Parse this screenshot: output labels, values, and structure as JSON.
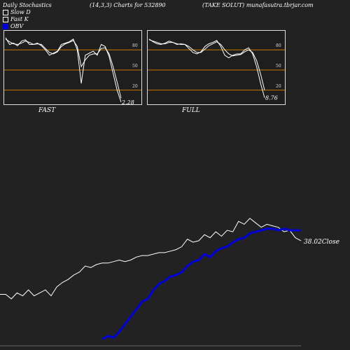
{
  "header": {
    "title": "Daily Stochastics",
    "params": "(14,3,3) Charts for 532890",
    "source": "(TAKE SOLUT) munafasutra.tbrjar.com"
  },
  "legend": [
    {
      "label": "Slow  D",
      "color": "#ffffff"
    },
    {
      "label": "Fast  K",
      "color": "#ffffff"
    },
    {
      "label": "OBV",
      "color": "#0000dd"
    }
  ],
  "chart_data": [
    {
      "type": "line",
      "title": "FAST",
      "ylim": [
        0,
        100
      ],
      "yticks": [
        20,
        50,
        80
      ],
      "reference_lines": [
        20,
        50,
        80
      ],
      "last_value_label": "2.28",
      "series": [
        {
          "values": [
            98,
            88,
            90,
            86,
            93,
            95,
            88,
            88,
            90,
            86,
            80,
            72,
            75,
            78,
            88,
            90,
            92,
            96,
            80,
            30,
            72,
            75,
            78,
            72,
            88,
            85,
            70,
            45,
            20,
            2.28
          ]
        },
        {
          "values": [
            96,
            92,
            89,
            88,
            90,
            93,
            91,
            88,
            89,
            88,
            82,
            76,
            74,
            77,
            85,
            89,
            91,
            94,
            85,
            55,
            65,
            72,
            74,
            74,
            82,
            83,
            74,
            55,
            32,
            8
          ]
        }
      ]
    },
    {
      "type": "line",
      "title": "FULL",
      "ylim": [
        0,
        100
      ],
      "yticks": [
        20,
        50,
        80
      ],
      "reference_lines": [
        20,
        50,
        80
      ],
      "last_value_label": "8.76",
      "series": [
        {
          "values": [
            96,
            92,
            89,
            88,
            90,
            93,
            91,
            88,
            89,
            88,
            82,
            76,
            74,
            77,
            85,
            89,
            91,
            94,
            85,
            72,
            68,
            72,
            74,
            74,
            80,
            83,
            74,
            55,
            30,
            8.76
          ]
        },
        {
          "values": [
            95,
            93,
            91,
            89,
            89,
            91,
            91,
            89,
            88,
            88,
            85,
            80,
            76,
            76,
            81,
            86,
            89,
            92,
            88,
            80,
            74,
            71,
            72,
            73,
            77,
            80,
            76,
            64,
            44,
            20
          ]
        }
      ]
    },
    {
      "type": "line",
      "title": "",
      "last_value_label": "38.02Close",
      "series": [
        {
          "values": [
            15,
            15,
            12,
            16,
            14,
            18,
            14,
            16,
            18,
            14,
            20,
            23,
            25,
            28,
            30,
            34,
            33,
            35,
            36,
            36,
            37,
            38,
            37,
            38,
            40,
            41,
            41,
            42,
            43,
            43,
            44,
            45,
            47,
            52,
            50,
            51,
            55,
            53,
            57,
            54,
            58,
            57,
            64,
            62,
            66,
            63,
            60,
            62,
            61,
            60,
            57,
            58,
            53,
            51
          ]
        },
        {
          "values": [
            null,
            null,
            null,
            null,
            null,
            null,
            null,
            null,
            null,
            null,
            null,
            null,
            null,
            null,
            null,
            null,
            null,
            null,
            -15,
            -13,
            -14,
            -10,
            -5,
            0,
            5,
            10,
            12,
            18,
            22,
            24,
            27,
            28,
            30,
            34,
            37,
            38,
            42,
            40,
            44,
            46,
            47,
            50,
            52,
            53,
            56,
            57,
            58,
            59,
            59,
            58,
            59,
            58,
            58,
            58
          ]
        }
      ]
    }
  ]
}
